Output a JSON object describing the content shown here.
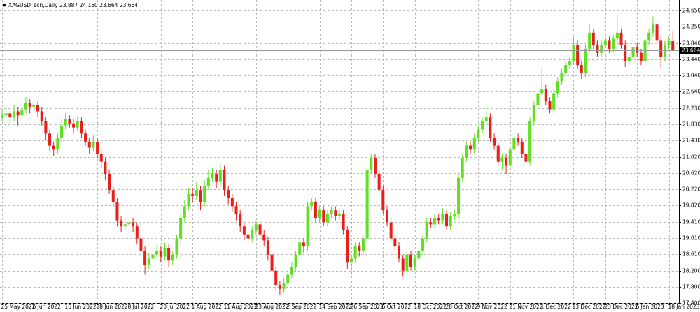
{
  "chart_data": {
    "type": "candlestick",
    "title": "XAGUSD_ecn,Daily  23.887 24.150 23.664 23.664",
    "up_color": "#5fe020",
    "down_color": "#e8201c",
    "grid": true,
    "last_price": 23.664,
    "ylim": [
      17.4,
      24.65
    ],
    "yticks": [
      {
        "value": 24.65,
        "label": "24.650"
      },
      {
        "value": 24.25,
        "label": "24.250"
      },
      {
        "value": 23.84,
        "label": "23.840"
      },
      {
        "value": 23.44,
        "label": "23.440"
      },
      {
        "value": 23.04,
        "label": "23.040"
      },
      {
        "value": 22.64,
        "label": "22.640"
      },
      {
        "value": 22.23,
        "label": "22.230"
      },
      {
        "value": 21.83,
        "label": "21.830"
      },
      {
        "value": 21.43,
        "label": "21.430"
      },
      {
        "value": 21.02,
        "label": "21.020"
      },
      {
        "value": 20.62,
        "label": "20.620"
      },
      {
        "value": 20.22,
        "label": "20.220"
      },
      {
        "value": 19.82,
        "label": "19.820"
      },
      {
        "value": 19.41,
        "label": "19.410"
      },
      {
        "value": 19.01,
        "label": "19.010"
      },
      {
        "value": 18.61,
        "label": "18.610"
      },
      {
        "value": 18.2,
        "label": "18.200"
      },
      {
        "value": 17.8,
        "label": "17.800"
      },
      {
        "value": 17.4,
        "label": "17.400"
      }
    ],
    "categories": [
      "25 May 2022",
      null,
      null,
      null,
      null,
      null,
      null,
      null,
      "6 Jun 2022",
      null,
      null,
      null,
      null,
      null,
      null,
      null,
      "16 Jun 2022",
      null,
      null,
      null,
      null,
      null,
      null,
      null,
      "28 Jun 2022",
      null,
      null,
      null,
      null,
      null,
      null,
      null,
      "8 Jul 2022",
      null,
      null,
      null,
      null,
      null,
      null,
      null,
      "20 Jul 2022",
      null,
      null,
      null,
      null,
      null,
      null,
      null,
      "1 Aug 2022",
      null,
      null,
      null,
      null,
      null,
      null,
      null,
      "11 Aug 2022",
      null,
      null,
      null,
      null,
      null,
      null,
      null,
      "23 Aug 2022",
      null,
      null,
      null,
      null,
      null,
      null,
      null,
      "2 Sep 2022",
      null,
      null,
      null,
      null,
      null,
      null,
      null,
      "14 Sep 2022",
      null,
      null,
      null,
      null,
      null,
      null,
      null,
      "26 Sep 2022",
      null,
      null,
      null,
      null,
      null,
      null,
      null,
      "6 Oct 2022",
      null,
      null,
      null,
      null,
      null,
      null,
      null,
      "18 Oct 2022",
      null,
      null,
      null,
      null,
      null,
      null,
      null,
      "28 Oct 2022",
      null,
      null,
      null,
      null,
      null,
      null,
      null,
      "9 Nov 2022",
      null,
      null,
      null,
      null,
      null,
      null,
      null,
      "21 Nov 2022",
      null,
      null,
      null,
      null,
      null,
      null,
      null,
      "1 Dec 2022",
      null,
      null,
      null,
      null,
      null,
      null,
      null,
      "13 Dec 2022",
      null,
      null,
      null,
      null,
      null,
      null,
      null,
      "23 Dec 2022",
      null,
      null,
      null,
      null,
      null,
      null,
      null,
      "6 Jan 2023",
      null,
      null,
      null,
      null,
      null,
      null,
      null,
      "18 Jan 2023",
      null
    ],
    "ohlc": [
      [
        22.0,
        22.2,
        21.9,
        22.05
      ],
      [
        22.05,
        22.25,
        21.95,
        22.1
      ],
      [
        22.1,
        22.2,
        21.85,
        22.0
      ],
      [
        22.0,
        22.3,
        21.9,
        22.15
      ],
      [
        22.15,
        22.25,
        21.8,
        22.05
      ],
      [
        22.05,
        22.4,
        21.95,
        22.2
      ],
      [
        22.2,
        22.5,
        22.1,
        22.35
      ],
      [
        22.35,
        22.45,
        22.1,
        22.25
      ],
      [
        22.25,
        22.45,
        22.15,
        22.3
      ],
      [
        22.3,
        22.4,
        22.0,
        22.15
      ],
      [
        22.15,
        22.25,
        21.8,
        21.9
      ],
      [
        21.9,
        22.0,
        21.45,
        21.6
      ],
      [
        21.6,
        21.7,
        21.15,
        21.3
      ],
      [
        21.3,
        21.4,
        21.05,
        21.2
      ],
      [
        21.2,
        21.6,
        21.1,
        21.5
      ],
      [
        21.5,
        21.95,
        21.4,
        21.8
      ],
      [
        21.8,
        22.1,
        21.7,
        21.95
      ],
      [
        21.95,
        22.05,
        21.75,
        21.85
      ],
      [
        21.85,
        21.95,
        21.6,
        21.75
      ],
      [
        21.75,
        22.0,
        21.65,
        21.9
      ],
      [
        21.9,
        22.0,
        21.5,
        21.6
      ],
      [
        21.6,
        21.7,
        21.3,
        21.4
      ],
      [
        21.4,
        21.5,
        21.1,
        21.25
      ],
      [
        21.25,
        21.55,
        21.15,
        21.4
      ],
      [
        21.4,
        21.5,
        21.0,
        21.1
      ],
      [
        21.1,
        21.2,
        20.75,
        20.9
      ],
      [
        20.9,
        21.0,
        20.45,
        20.6
      ],
      [
        20.6,
        20.7,
        20.1,
        20.2
      ],
      [
        20.2,
        20.3,
        19.8,
        19.9
      ],
      [
        19.9,
        20.0,
        19.3,
        19.45
      ],
      [
        19.45,
        19.55,
        19.15,
        19.3
      ],
      [
        19.3,
        19.5,
        19.2,
        19.35
      ],
      [
        19.35,
        19.55,
        19.25,
        19.4
      ],
      [
        19.4,
        19.5,
        19.15,
        19.3
      ],
      [
        19.3,
        19.4,
        18.85,
        19.0
      ],
      [
        19.0,
        19.1,
        18.55,
        18.7
      ],
      [
        18.7,
        18.8,
        18.1,
        18.35
      ],
      [
        18.35,
        18.65,
        18.25,
        18.5
      ],
      [
        18.5,
        18.75,
        18.4,
        18.6
      ],
      [
        18.6,
        18.85,
        18.5,
        18.7
      ],
      [
        18.7,
        18.8,
        18.4,
        18.55
      ],
      [
        18.55,
        18.9,
        18.45,
        18.75
      ],
      [
        18.75,
        18.85,
        18.3,
        18.45
      ],
      [
        18.45,
        18.7,
        18.35,
        18.6
      ],
      [
        18.6,
        19.1,
        18.5,
        19.0
      ],
      [
        19.0,
        19.6,
        18.9,
        19.5
      ],
      [
        19.5,
        19.95,
        19.4,
        19.8
      ],
      [
        19.8,
        20.25,
        19.7,
        20.1
      ],
      [
        20.1,
        20.25,
        19.9,
        20.05
      ],
      [
        20.05,
        20.4,
        19.95,
        20.2
      ],
      [
        20.2,
        20.3,
        19.7,
        19.9
      ],
      [
        19.9,
        20.45,
        19.8,
        20.3
      ],
      [
        20.3,
        20.7,
        20.2,
        20.5
      ],
      [
        20.5,
        20.75,
        20.4,
        20.6
      ],
      [
        20.6,
        20.7,
        20.25,
        20.4
      ],
      [
        20.4,
        20.85,
        20.3,
        20.7
      ],
      [
        20.7,
        20.8,
        20.05,
        20.2
      ],
      [
        20.2,
        20.3,
        19.85,
        20.0
      ],
      [
        20.0,
        20.1,
        19.65,
        19.8
      ],
      [
        19.8,
        19.9,
        19.45,
        19.6
      ],
      [
        19.6,
        19.7,
        19.15,
        19.3
      ],
      [
        19.3,
        19.4,
        18.95,
        19.1
      ],
      [
        19.1,
        19.2,
        18.85,
        19.0
      ],
      [
        19.0,
        19.3,
        18.9,
        19.2
      ],
      [
        19.2,
        19.45,
        19.1,
        19.35
      ],
      [
        19.35,
        19.45,
        19.0,
        19.1
      ],
      [
        19.1,
        19.2,
        18.8,
        18.95
      ],
      [
        18.95,
        19.05,
        18.45,
        18.6
      ],
      [
        18.6,
        18.7,
        18.05,
        18.2
      ],
      [
        18.2,
        18.3,
        17.7,
        17.85
      ],
      [
        17.85,
        17.95,
        17.6,
        17.75
      ],
      [
        17.75,
        18.0,
        17.65,
        17.9
      ],
      [
        17.9,
        18.2,
        17.8,
        18.1
      ],
      [
        18.1,
        18.4,
        18.0,
        18.3
      ],
      [
        18.3,
        18.7,
        18.2,
        18.6
      ],
      [
        18.6,
        19.0,
        18.5,
        18.9
      ],
      [
        18.9,
        19.0,
        18.65,
        18.8
      ],
      [
        18.8,
        19.9,
        18.7,
        19.8
      ],
      [
        19.8,
        20.0,
        19.7,
        19.9
      ],
      [
        19.9,
        20.0,
        19.4,
        19.5
      ],
      [
        19.5,
        19.8,
        19.4,
        19.7
      ],
      [
        19.7,
        19.8,
        19.3,
        19.4
      ],
      [
        19.4,
        19.7,
        19.3,
        19.6
      ],
      [
        19.6,
        19.8,
        19.5,
        19.7
      ],
      [
        19.7,
        19.8,
        19.45,
        19.55
      ],
      [
        19.55,
        19.7,
        19.45,
        19.6
      ],
      [
        19.6,
        19.7,
        19.1,
        19.2
      ],
      [
        19.2,
        19.3,
        18.25,
        18.4
      ],
      [
        18.4,
        18.6,
        18.1,
        18.5
      ],
      [
        18.5,
        18.9,
        18.4,
        18.8
      ],
      [
        18.8,
        18.9,
        18.55,
        18.7
      ],
      [
        18.7,
        19.1,
        18.6,
        19.0
      ],
      [
        19.0,
        20.8,
        18.9,
        20.7
      ],
      [
        20.7,
        21.1,
        20.6,
        21.0
      ],
      [
        21.0,
        21.1,
        20.5,
        20.6
      ],
      [
        20.6,
        20.7,
        20.1,
        20.2
      ],
      [
        20.2,
        20.3,
        19.6,
        19.7
      ],
      [
        19.7,
        19.8,
        19.3,
        19.4
      ],
      [
        19.4,
        19.5,
        18.9,
        19.0
      ],
      [
        19.0,
        19.1,
        18.7,
        18.8
      ],
      [
        18.8,
        18.9,
        18.4,
        18.5
      ],
      [
        18.5,
        18.6,
        18.05,
        18.2
      ],
      [
        18.2,
        18.7,
        18.1,
        18.6
      ],
      [
        18.6,
        18.7,
        18.2,
        18.3
      ],
      [
        18.3,
        18.6,
        18.2,
        18.5
      ],
      [
        18.5,
        18.8,
        18.4,
        18.7
      ],
      [
        18.7,
        19.1,
        18.6,
        19.0
      ],
      [
        19.0,
        19.5,
        18.9,
        19.4
      ],
      [
        19.4,
        19.5,
        19.25,
        19.35
      ],
      [
        19.35,
        19.6,
        19.25,
        19.5
      ],
      [
        19.5,
        19.6,
        19.35,
        19.45
      ],
      [
        19.45,
        19.75,
        19.35,
        19.6
      ],
      [
        19.6,
        19.7,
        19.2,
        19.3
      ],
      [
        19.3,
        19.65,
        19.2,
        19.55
      ],
      [
        19.55,
        19.7,
        19.45,
        19.6
      ],
      [
        19.6,
        20.6,
        19.5,
        20.5
      ],
      [
        20.5,
        21.1,
        20.4,
        21.0
      ],
      [
        21.0,
        21.4,
        20.9,
        21.3
      ],
      [
        21.3,
        21.4,
        21.1,
        21.2
      ],
      [
        21.2,
        21.6,
        21.1,
        21.5
      ],
      [
        21.5,
        21.8,
        21.4,
        21.7
      ],
      [
        21.7,
        22.0,
        21.6,
        21.9
      ],
      [
        21.9,
        22.3,
        21.8,
        22.0
      ],
      [
        22.0,
        22.1,
        21.4,
        21.5
      ],
      [
        21.5,
        21.6,
        21.2,
        21.3
      ],
      [
        21.3,
        21.4,
        20.8,
        20.9
      ],
      [
        20.9,
        21.1,
        20.7,
        21.0
      ],
      [
        21.0,
        21.1,
        20.6,
        20.8
      ],
      [
        20.8,
        21.3,
        20.7,
        21.2
      ],
      [
        21.2,
        21.6,
        21.1,
        21.5
      ],
      [
        21.5,
        21.6,
        21.3,
        21.4
      ],
      [
        21.4,
        21.5,
        21.0,
        21.1
      ],
      [
        21.1,
        21.2,
        20.8,
        20.9
      ],
      [
        20.9,
        22.0,
        20.8,
        21.9
      ],
      [
        21.9,
        22.4,
        21.8,
        22.3
      ],
      [
        22.3,
        22.7,
        22.2,
        22.6
      ],
      [
        22.6,
        23.2,
        22.5,
        22.7
      ],
      [
        22.7,
        22.8,
        22.3,
        22.4
      ],
      [
        22.4,
        22.5,
        22.1,
        22.2
      ],
      [
        22.2,
        22.7,
        22.1,
        22.6
      ],
      [
        22.6,
        23.0,
        22.5,
        22.9
      ],
      [
        22.9,
        23.2,
        22.8,
        23.1
      ],
      [
        23.1,
        23.4,
        23.0,
        23.3
      ],
      [
        23.3,
        23.5,
        23.2,
        23.4
      ],
      [
        23.4,
        24.0,
        23.3,
        23.8
      ],
      [
        23.8,
        23.9,
        23.2,
        23.3
      ],
      [
        23.3,
        23.4,
        22.95,
        23.1
      ],
      [
        23.1,
        23.8,
        23.0,
        23.7
      ],
      [
        23.7,
        24.3,
        23.6,
        24.1
      ],
      [
        24.1,
        24.2,
        23.7,
        23.8
      ],
      [
        23.8,
        23.9,
        23.5,
        23.6
      ],
      [
        23.6,
        23.9,
        23.5,
        23.8
      ],
      [
        23.8,
        24.0,
        23.7,
        23.9
      ],
      [
        23.9,
        24.0,
        23.6,
        23.7
      ],
      [
        23.7,
        24.05,
        23.6,
        23.95
      ],
      [
        23.95,
        24.55,
        23.85,
        24.1
      ],
      [
        24.1,
        24.2,
        23.7,
        23.8
      ],
      [
        23.8,
        23.9,
        23.25,
        23.4
      ],
      [
        23.4,
        23.6,
        23.3,
        23.5
      ],
      [
        23.5,
        23.85,
        23.4,
        23.75
      ],
      [
        23.75,
        23.85,
        23.5,
        23.6
      ],
      [
        23.6,
        23.7,
        23.3,
        23.4
      ],
      [
        23.4,
        24.0,
        23.3,
        23.9
      ],
      [
        23.9,
        24.2,
        23.8,
        24.1
      ],
      [
        24.1,
        24.5,
        24.0,
        24.3
      ],
      [
        24.3,
        24.4,
        23.8,
        23.9
      ],
      [
        23.9,
        24.0,
        23.2,
        23.5
      ],
      [
        23.5,
        23.9,
        23.4,
        23.8
      ],
      [
        23.8,
        24.0,
        23.7,
        23.887
      ],
      [
        23.887,
        24.15,
        23.664,
        23.664
      ]
    ]
  }
}
